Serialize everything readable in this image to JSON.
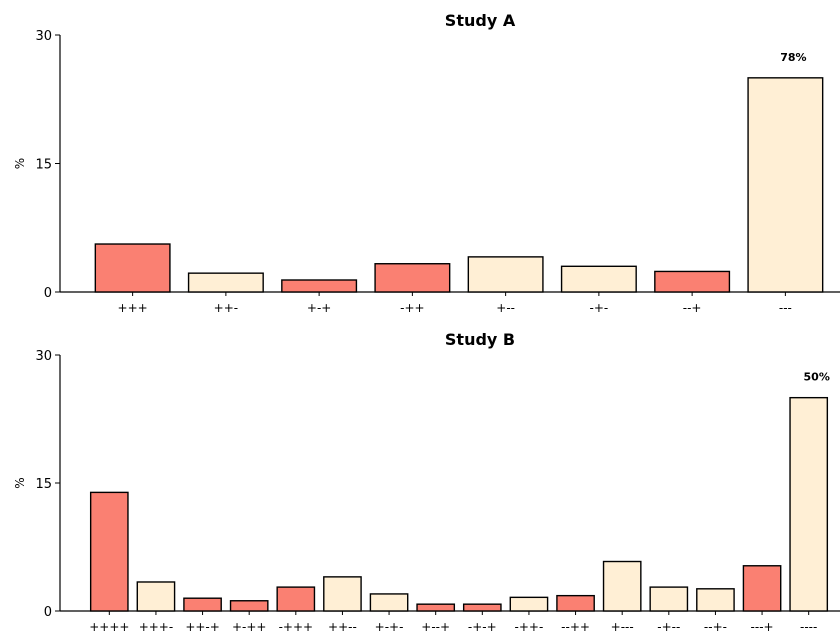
{
  "chart_data": [
    {
      "type": "bar",
      "title": "Study A",
      "ylabel": "%",
      "ylim": [
        0,
        30
      ],
      "yticks": [
        "0",
        "15",
        "30"
      ],
      "categories": [
        "+++",
        "++-",
        "+-+",
        "-++",
        "+--",
        "-+-",
        "--+",
        "---"
      ],
      "values": [
        5.6,
        2.2,
        1.4,
        3.3,
        4.1,
        3.0,
        2.4,
        25.0
      ],
      "bar_types": [
        "salmon",
        "cream",
        "salmon",
        "salmon",
        "cream",
        "cream",
        "salmon",
        "cream"
      ],
      "annotation": {
        "index": 7,
        "text": "78%"
      }
    },
    {
      "type": "bar",
      "title": "Study B",
      "ylabel": "%",
      "ylim": [
        0,
        30
      ],
      "yticks": [
        "0",
        "15",
        "30"
      ],
      "categories": [
        "++++",
        "+++-",
        "++-+",
        "+-++",
        "-+++",
        "++--",
        "+-+-",
        "+--+",
        "-+-+",
        "-++-",
        "--++",
        "+---",
        "-+--",
        "--+-",
        "---+",
        "----"
      ],
      "values": [
        13.9,
        3.4,
        1.5,
        1.2,
        2.8,
        4.0,
        2.0,
        0.8,
        0.8,
        1.6,
        1.8,
        5.8,
        2.8,
        2.6,
        5.3,
        25.0
      ],
      "bar_types": [
        "salmon",
        "cream",
        "salmon",
        "salmon",
        "salmon",
        "cream",
        "cream",
        "salmon",
        "salmon",
        "cream",
        "salmon",
        "cream",
        "cream",
        "cream",
        "salmon",
        "cream"
      ],
      "annotation": {
        "index": 15,
        "text": "50%"
      }
    }
  ],
  "colors": {
    "salmon": "#fa8072",
    "cream": "#ffefd5",
    "edge": "#000000"
  }
}
